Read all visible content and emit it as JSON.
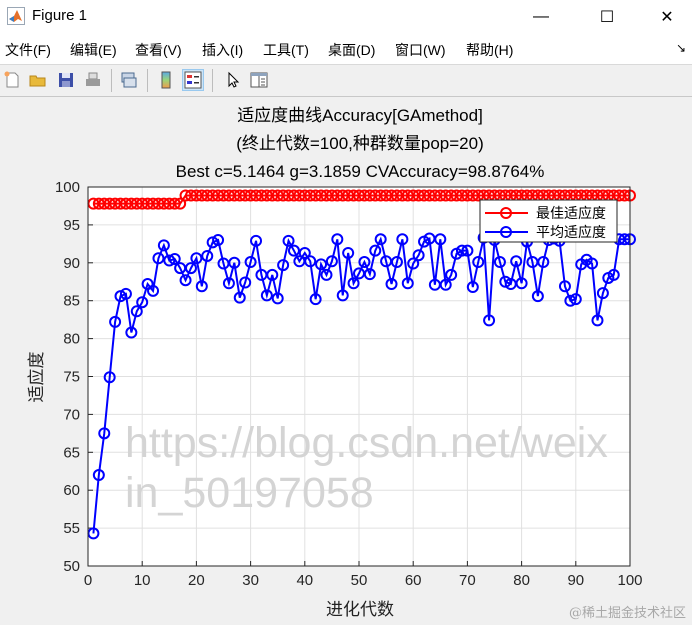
{
  "window": {
    "title": "Figure 1",
    "controls": {
      "minimize": "—",
      "maximize": "☐",
      "close": "✕"
    }
  },
  "menu": {
    "items": [
      "文件(F)",
      "编辑(E)",
      "查看(V)",
      "插入(I)",
      "工具(T)",
      "桌面(D)",
      "窗口(W)",
      "帮助(H)"
    ],
    "overflow_icon": "↘"
  },
  "toolbar": {
    "icons": [
      "new-figure-icon",
      "open-file-icon",
      "save-icon",
      "print-icon",
      "link-plot-icon",
      "colorbar-icon",
      "legend-icon",
      "pointer-icon",
      "property-editor-icon"
    ],
    "active": "legend-icon"
  },
  "chart_data": {
    "type": "line",
    "title": [
      "适应度曲线Accuracy[GAmethod]",
      "(终止代数=100,种群数量pop=20)",
      "Best c=5.1464 g=3.1859 CVAccuracy=98.8764%"
    ],
    "xlabel": "进化代数",
    "ylabel": "适应度",
    "xlim": [
      0,
      100
    ],
    "ylim": [
      50,
      100
    ],
    "xticks": [
      "0",
      "10",
      "20",
      "30",
      "40",
      "50",
      "60",
      "70",
      "80",
      "90",
      "100"
    ],
    "yticks": [
      "50",
      "55",
      "60",
      "65",
      "70",
      "75",
      "80",
      "85",
      "90",
      "95",
      "100"
    ],
    "grid": true,
    "legend": "top-right",
    "x": [
      1,
      2,
      3,
      4,
      5,
      6,
      7,
      8,
      9,
      10,
      11,
      12,
      13,
      14,
      15,
      16,
      17,
      18,
      19,
      20,
      21,
      22,
      23,
      24,
      25,
      26,
      27,
      28,
      29,
      30,
      31,
      32,
      33,
      34,
      35,
      36,
      37,
      38,
      39,
      40,
      41,
      42,
      43,
      44,
      45,
      46,
      47,
      48,
      49,
      50,
      51,
      52,
      53,
      54,
      55,
      56,
      57,
      58,
      59,
      60,
      61,
      62,
      63,
      64,
      65,
      66,
      67,
      68,
      69,
      70,
      71,
      72,
      73,
      74,
      75,
      76,
      77,
      78,
      79,
      80,
      81,
      82,
      83,
      84,
      85,
      86,
      87,
      88,
      89,
      90,
      91,
      92,
      93,
      94,
      95,
      96,
      97,
      98,
      99,
      100
    ],
    "series": [
      {
        "name": "最佳适应度",
        "color": "#ff0000",
        "marker": "circle",
        "values": [
          97.8,
          97.8,
          97.8,
          97.8,
          97.8,
          97.8,
          97.8,
          97.8,
          97.8,
          97.8,
          97.8,
          97.8,
          97.8,
          97.8,
          97.8,
          97.8,
          97.8,
          98.88,
          98.88,
          98.88,
          98.88,
          98.88,
          98.88,
          98.88,
          98.88,
          98.88,
          98.88,
          98.88,
          98.88,
          98.88,
          98.88,
          98.88,
          98.88,
          98.88,
          98.88,
          98.88,
          98.88,
          98.88,
          98.88,
          98.88,
          98.88,
          98.88,
          98.88,
          98.88,
          98.88,
          98.88,
          98.88,
          98.88,
          98.88,
          98.88,
          98.88,
          98.88,
          98.88,
          98.88,
          98.88,
          98.88,
          98.88,
          98.88,
          98.88,
          98.88,
          98.88,
          98.88,
          98.88,
          98.88,
          98.88,
          98.88,
          98.88,
          98.88,
          98.88,
          98.88,
          98.88,
          98.88,
          98.88,
          98.88,
          98.88,
          98.88,
          98.88,
          98.88,
          98.88,
          98.88,
          98.88,
          98.88,
          98.88,
          98.88,
          98.88,
          98.88,
          98.88,
          98.88,
          98.88,
          98.88,
          98.88,
          98.88,
          98.88,
          98.88,
          98.88,
          98.88,
          98.88,
          98.88,
          98.88,
          98.88
        ]
      },
      {
        "name": "平均适应度",
        "color": "#0000ff",
        "marker": "circle",
        "values": [
          54.3,
          62.0,
          67.5,
          74.9,
          82.2,
          85.6,
          85.9,
          80.8,
          83.6,
          84.8,
          87.2,
          86.3,
          90.6,
          92.3,
          90.3,
          90.5,
          89.3,
          87.7,
          89.3,
          90.6,
          86.9,
          90.9,
          92.7,
          93.0,
          89.9,
          87.3,
          90.0,
          85.4,
          87.4,
          90.1,
          92.9,
          88.4,
          85.7,
          88.4,
          85.3,
          89.7,
          92.9,
          91.6,
          90.2,
          91.3,
          90.2,
          85.2,
          89.8,
          88.4,
          90.2,
          93.1,
          85.7,
          91.3,
          87.3,
          88.6,
          90.1,
          88.5,
          91.6,
          93.1,
          90.2,
          87.2,
          90.1,
          93.1,
          87.3,
          89.9,
          91.0,
          92.8,
          93.2,
          87.1,
          93.1,
          87.1,
          88.4,
          91.2,
          91.6,
          91.6,
          86.8,
          90.1,
          93.3,
          82.4,
          93.0,
          90.1,
          87.5,
          87.2,
          90.2,
          87.3,
          92.8,
          90.1,
          85.6,
          90.1,
          93.0,
          93.2,
          92.9,
          86.9,
          85.0,
          85.2,
          89.8,
          90.4,
          89.9,
          82.4,
          86.0,
          88.0,
          88.4,
          93.1,
          93.1,
          93.1
        ]
      }
    ]
  },
  "watermark": {
    "url": "https://blog.csdn.net/weixin_50197058",
    "site": "@稀土掘金技术社区"
  }
}
